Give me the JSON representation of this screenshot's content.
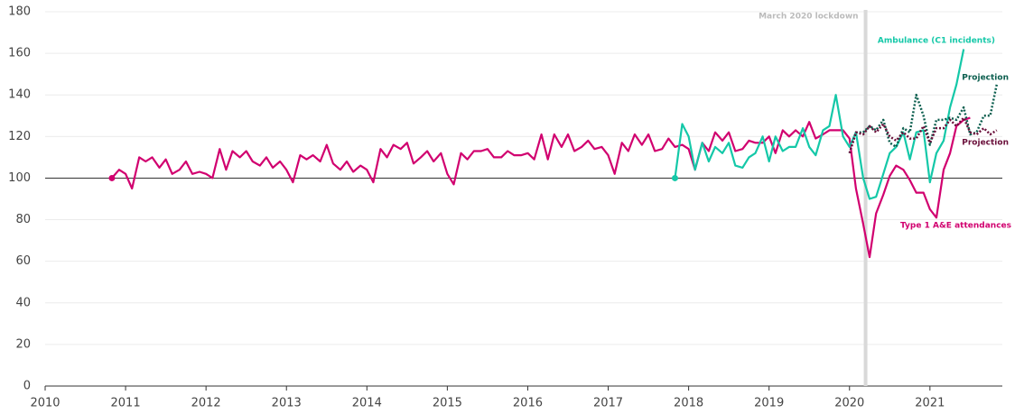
{
  "chart_data": {
    "type": "line",
    "xlim": [
      2010,
      2021.9
    ],
    "ylim": [
      0,
      180
    ],
    "xticks": [
      2010,
      2011,
      2012,
      2013,
      2014,
      2015,
      2016,
      2017,
      2018,
      2019,
      2020,
      2021
    ],
    "yticks": [
      0,
      20,
      40,
      60,
      80,
      100,
      120,
      140,
      160,
      180
    ],
    "grid": true,
    "reference_line": {
      "value": 100,
      "color": "#333333"
    },
    "vline": {
      "x": 2020.2,
      "label": "March 2020 lockdown",
      "color": "#d9d9d9"
    },
    "series": [
      {
        "name": "Type 1 A&E attendances",
        "color": "#d1006f",
        "dash": false,
        "start_marker": true,
        "x": [
          2010.83,
          2010.92,
          2011,
          2011.08,
          2011.17,
          2011.25,
          2011.33,
          2011.42,
          2011.5,
          2011.58,
          2011.67,
          2011.75,
          2011.83,
          2011.92,
          2012,
          2012.08,
          2012.17,
          2012.25,
          2012.33,
          2012.42,
          2012.5,
          2012.58,
          2012.67,
          2012.75,
          2012.83,
          2012.92,
          2013,
          2013.08,
          2013.17,
          2013.25,
          2013.33,
          2013.42,
          2013.5,
          2013.58,
          2013.67,
          2013.75,
          2013.83,
          2013.92,
          2014,
          2014.08,
          2014.17,
          2014.25,
          2014.33,
          2014.42,
          2014.5,
          2014.58,
          2014.67,
          2014.75,
          2014.83,
          2014.92,
          2015,
          2015.08,
          2015.17,
          2015.25,
          2015.33,
          2015.42,
          2015.5,
          2015.58,
          2015.67,
          2015.75,
          2015.83,
          2015.92,
          2016,
          2016.08,
          2016.17,
          2016.25,
          2016.33,
          2016.42,
          2016.5,
          2016.58,
          2016.67,
          2016.75,
          2016.83,
          2016.92,
          2017,
          2017.08,
          2017.17,
          2017.25,
          2017.33,
          2017.42,
          2017.5,
          2017.58,
          2017.67,
          2017.75,
          2017.83,
          2017.92,
          2018,
          2018.08,
          2018.17,
          2018.25,
          2018.33,
          2018.42,
          2018.5,
          2018.58,
          2018.67,
          2018.75,
          2018.83,
          2018.92,
          2019,
          2019.08,
          2019.17,
          2019.25,
          2019.33,
          2019.42,
          2019.5,
          2019.58,
          2019.67,
          2019.75,
          2019.83,
          2019.92,
          2020,
          2020.08,
          2020.17,
          2020.25,
          2020.33,
          2020.42,
          2020.5,
          2020.58,
          2020.67,
          2020.75,
          2020.83,
          2020.92,
          2021,
          2021.08,
          2021.17,
          2021.25,
          2021.33,
          2021.42,
          2021.5
        ],
        "values": [
          100,
          104,
          102,
          95,
          110,
          108,
          110,
          105,
          109,
          102,
          104,
          108,
          102,
          103,
          102,
          100,
          114,
          104,
          113,
          110,
          113,
          108,
          106,
          110,
          105,
          108,
          104,
          98,
          111,
          109,
          111,
          108,
          116,
          107,
          104,
          108,
          103,
          106,
          104,
          98,
          114,
          110,
          116,
          114,
          117,
          107,
          110,
          113,
          108,
          112,
          102,
          97,
          112,
          109,
          113,
          113,
          114,
          110,
          110,
          113,
          111,
          111,
          112,
          109,
          121,
          109,
          121,
          115,
          121,
          113,
          115,
          118,
          114,
          115,
          111,
          102,
          117,
          113,
          121,
          116,
          121,
          113,
          114,
          119,
          115,
          116,
          114,
          104,
          117,
          113,
          122,
          118,
          122,
          113,
          114,
          118,
          117,
          117,
          120,
          112,
          123,
          120,
          123,
          120,
          127,
          119,
          121,
          123,
          123,
          123,
          119,
          95,
          78,
          62,
          83,
          92,
          101,
          106,
          104,
          99,
          93,
          93,
          85,
          81,
          104,
          112,
          125,
          128,
          129
        ]
      },
      {
        "name": "Ambulance (C1 incidents)",
        "color": "#14c8a8",
        "dash": false,
        "start_marker": true,
        "x": [
          2017.83,
          2017.92,
          2018,
          2018.08,
          2018.17,
          2018.25,
          2018.33,
          2018.42,
          2018.5,
          2018.58,
          2018.67,
          2018.75,
          2018.83,
          2018.92,
          2019,
          2019.08,
          2019.17,
          2019.25,
          2019.33,
          2019.42,
          2019.5,
          2019.58,
          2019.67,
          2019.75,
          2019.83,
          2019.92,
          2020,
          2020.08,
          2020.17,
          2020.25,
          2020.33,
          2020.42,
          2020.5,
          2020.58,
          2020.67,
          2020.75,
          2020.83,
          2020.92,
          2021,
          2021.08,
          2021.17,
          2021.25,
          2021.33,
          2021.42
        ],
        "values": [
          100,
          126,
          120,
          104,
          117,
          108,
          115,
          112,
          117,
          106,
          105,
          110,
          112,
          120,
          108,
          120,
          113,
          115,
          115,
          124,
          115,
          111,
          123,
          125,
          140,
          120,
          115,
          122,
          100,
          90,
          91,
          102,
          112,
          115,
          122,
          109,
          122,
          123,
          98,
          112,
          118,
          134,
          145,
          162
        ]
      },
      {
        "name": "Projection",
        "color": "#0b5e4e",
        "dash": true,
        "start_marker": false,
        "x": [
          2020,
          2020.08,
          2020.17,
          2020.25,
          2020.33,
          2020.42,
          2020.5,
          2020.58,
          2020.67,
          2020.75,
          2020.83,
          2020.92,
          2021,
          2021.08,
          2021.17,
          2021.25,
          2021.33,
          2021.42,
          2021.5,
          2021.58,
          2021.67,
          2021.75,
          2021.83
        ],
        "values": [
          112,
          122,
          122,
          125,
          123,
          128,
          117,
          115,
          124,
          122,
          140,
          130,
          116,
          128,
          128,
          129,
          128,
          134,
          121,
          122,
          130,
          130,
          145
        ]
      },
      {
        "name": "Projection",
        "color": "#6a0f3a",
        "dash": true,
        "start_marker": false,
        "x": [
          2020,
          2020.08,
          2020.17,
          2020.25,
          2020.33,
          2020.42,
          2020.5,
          2020.58,
          2020.67,
          2020.75,
          2020.83,
          2020.92,
          2021,
          2021.08,
          2021.17,
          2021.25,
          2021.33,
          2021.42,
          2021.5,
          2021.58,
          2021.67,
          2021.75,
          2021.83
        ],
        "values": [
          112,
          122,
          121,
          125,
          122,
          126,
          120,
          118,
          122,
          119,
          119,
          125,
          117,
          124,
          124,
          128,
          125,
          129,
          122,
          121,
          124,
          121,
          123
        ]
      }
    ]
  }
}
